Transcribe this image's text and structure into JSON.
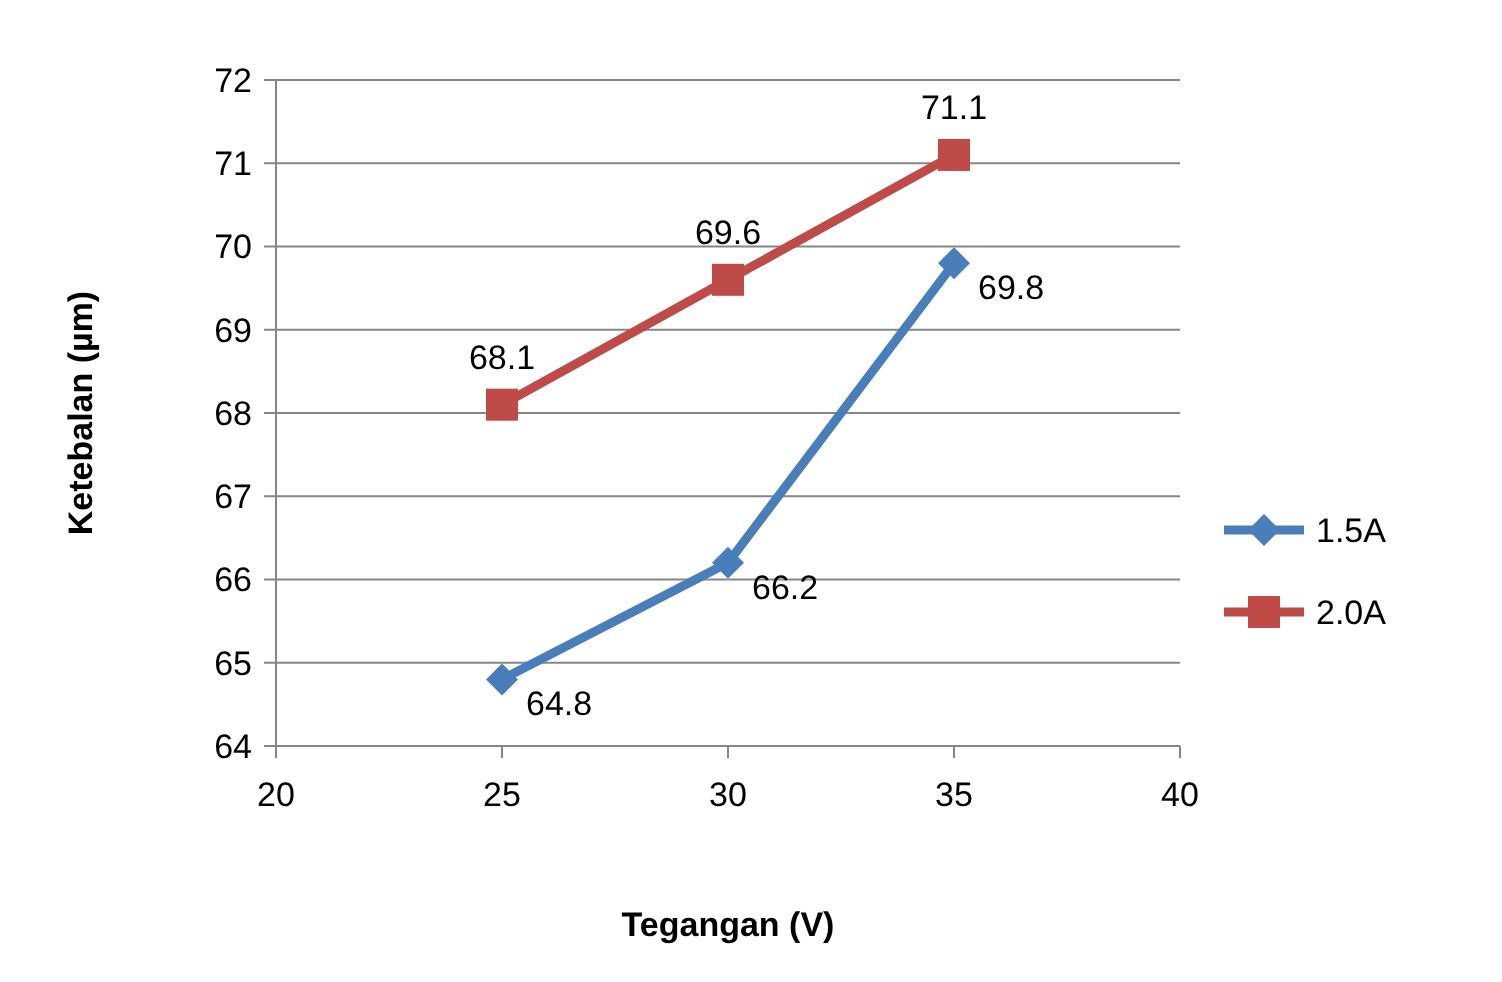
{
  "chart_data": {
    "type": "line",
    "xlabel": "Tegangan (V)",
    "ylabel": "Ketebalan (µm)",
    "x": [
      25,
      30,
      35
    ],
    "series": [
      {
        "name": "1.5A",
        "color": "#4a7ebb",
        "values": [
          64.8,
          66.2,
          69.8
        ],
        "marker": "diamond"
      },
      {
        "name": "2.0A",
        "color": "#be4b48",
        "values": [
          68.1,
          69.6,
          71.1
        ],
        "marker": "square"
      }
    ],
    "xlim": [
      20,
      40
    ],
    "xticks": [
      20,
      25,
      30,
      35,
      40
    ],
    "ylim": [
      64,
      72
    ],
    "yticks": [
      64,
      65,
      66,
      67,
      68,
      69,
      70,
      71,
      72
    ],
    "grid": "y",
    "legend": "right",
    "data_labels": true,
    "line_style": "solid"
  }
}
